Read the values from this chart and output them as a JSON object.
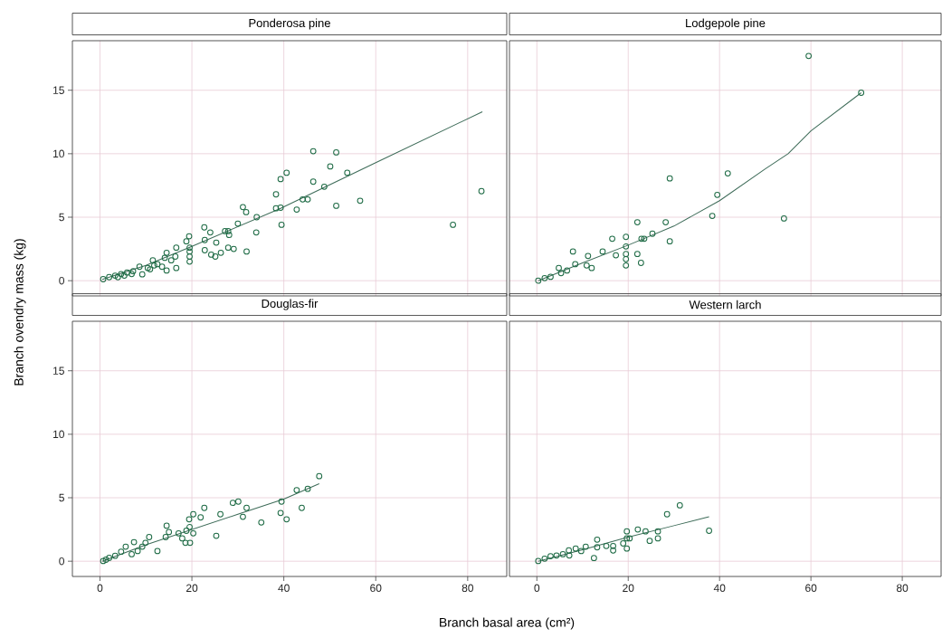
{
  "chart_data": [
    {
      "type": "scatter",
      "title": "Ponderosa pine",
      "ylabel": "Branch ovendry mass (kg)",
      "xlim": [
        -6,
        88.5
      ],
      "ylim": [
        -1.2,
        18.9
      ],
      "xticks": [
        0,
        20,
        40,
        60,
        80
      ],
      "yticks": [
        0,
        5,
        10,
        15
      ],
      "grid": true,
      "tick_labels": "y",
      "series": [
        {
          "marker": "circle",
          "color": "#1e6b45",
          "x": [
            83.0,
            76.8,
            46.4,
            51.4,
            50.1,
            53.8,
            40.6,
            39.3,
            46.4,
            48.8,
            38.3,
            56.6,
            51.4,
            44.1,
            45.2,
            42.8,
            39.3,
            38.3,
            39.5,
            34.1,
            34.0,
            31.1,
            31.8,
            30.0,
            31.9,
            27.9,
            28.1,
            27.2,
            27.9,
            29.1,
            22.7,
            24.0,
            25.3,
            22.8,
            22.8,
            24.2,
            26.3,
            25.1,
            19.4,
            18.8,
            19.5,
            19.5,
            19.5,
            19.5,
            16.6,
            14.5,
            14.1,
            16.4,
            16.6,
            14.5,
            11.5,
            11.8,
            10.4,
            8.6,
            7.2,
            5.9,
            4.6,
            3.3,
            2.0,
            0.7,
            9.2,
            12.5,
            13.5,
            15.5,
            10.9,
            3.9,
            5.3,
            6.9
          ],
          "values": [
            7.05,
            4.4,
            10.2,
            10.1,
            9.0,
            8.5,
            8.5,
            8.0,
            7.8,
            7.4,
            6.8,
            6.3,
            5.9,
            6.4,
            6.4,
            5.6,
            5.75,
            5.7,
            4.4,
            5.0,
            3.8,
            5.8,
            5.4,
            4.5,
            2.3,
            3.9,
            3.6,
            3.9,
            2.6,
            2.5,
            4.2,
            3.8,
            3.0,
            3.2,
            2.4,
            2.05,
            2.2,
            1.9,
            3.5,
            3.1,
            2.6,
            2.3,
            1.9,
            1.5,
            2.6,
            2.2,
            1.8,
            1.9,
            1.0,
            0.8,
            1.6,
            1.2,
            1.0,
            1.1,
            0.75,
            0.64,
            0.52,
            0.4,
            0.28,
            0.12,
            0.5,
            1.3,
            1.1,
            1.6,
            0.9,
            0.28,
            0.4,
            0.52
          ]
        },
        {
          "type": "line",
          "color": "#3d6b58",
          "x": [
            0.5,
            10,
            20,
            39.3,
            60,
            83.2
          ],
          "values": [
            0.1,
            1.2,
            2.7,
            5.7,
            9.3,
            13.3
          ]
        }
      ]
    },
    {
      "type": "scatter",
      "title": "Lodgepole pine",
      "xlim": [
        -6,
        88.5
      ],
      "ylim": [
        -1.2,
        18.9
      ],
      "xticks": [
        0,
        20,
        40,
        60,
        80
      ],
      "yticks": [
        0,
        5,
        10,
        15
      ],
      "grid": true,
      "tick_labels": false,
      "series": [
        {
          "marker": "circle",
          "color": "#1e6b45",
          "x": [
            59.5,
            71.0,
            54.1,
            41.8,
            29.1,
            39.5,
            38.4,
            28.2,
            22.0,
            29.1,
            25.3,
            23.5,
            22.9,
            19.5,
            19.5,
            19.5,
            19.5,
            19.5,
            22.0,
            22.8,
            16.5,
            14.4,
            17.3,
            11.2,
            10.9,
            12.0,
            7.9,
            8.4,
            6.6,
            4.8,
            5.3,
            3.0,
            1.7,
            0.3
          ],
          "values": [
            17.7,
            14.8,
            4.9,
            8.45,
            8.05,
            6.76,
            5.1,
            4.6,
            4.6,
            3.1,
            3.7,
            3.3,
            3.3,
            3.45,
            2.7,
            2.1,
            1.7,
            1.2,
            2.1,
            1.4,
            3.3,
            2.3,
            2.0,
            1.95,
            1.2,
            1.0,
            2.3,
            1.3,
            0.8,
            1.0,
            0.6,
            0.3,
            0.2,
            0.0
          ]
        },
        {
          "type": "line",
          "color": "#3d6b58",
          "x": [
            0.3,
            10,
            20,
            30,
            40,
            50,
            55,
            60,
            71
          ],
          "values": [
            0.0,
            1.4,
            2.8,
            4.3,
            6.3,
            8.8,
            10.0,
            11.8,
            14.8
          ]
        }
      ]
    },
    {
      "type": "scatter",
      "title": "Douglas-fir",
      "xlabel": "Branch basal area (cm²)",
      "xlim": [
        -6,
        88.5
      ],
      "ylim": [
        -1.2,
        18.9
      ],
      "xticks": [
        0,
        20,
        40,
        60,
        80
      ],
      "yticks": [
        0,
        5,
        10,
        15
      ],
      "grid": true,
      "series": [
        {
          "marker": "circle",
          "color": "#1e6b45",
          "x": [
            47.7,
            42.8,
            45.2,
            43.9,
            39.5,
            39.3,
            40.6,
            35.1,
            31.9,
            28.9,
            30.1,
            31.1,
            26.2,
            25.3,
            22.7,
            21.9,
            20.3,
            19.4,
            19.5,
            20.3,
            18.8,
            17.9,
            18.6,
            19.6,
            17.1,
            14.5,
            15.0,
            14.3,
            12.5,
            10.7,
            9.9,
            7.4,
            5.6,
            6.9,
            8.2,
            4.6,
            3.3,
            2.0,
            0.7,
            1.3,
            9.2
          ],
          "values": [
            6.7,
            5.6,
            5.7,
            4.2,
            4.7,
            3.8,
            3.3,
            3.05,
            4.2,
            4.6,
            4.7,
            3.5,
            3.7,
            2.0,
            4.2,
            3.45,
            3.7,
            3.3,
            2.7,
            2.2,
            2.4,
            1.8,
            1.45,
            1.45,
            2.2,
            2.8,
            2.3,
            1.9,
            0.8,
            1.9,
            1.45,
            1.5,
            1.15,
            0.55,
            0.8,
            0.75,
            0.43,
            0.26,
            0.02,
            0.12,
            1.15
          ]
        },
        {
          "type": "line",
          "color": "#3d6b58",
          "x": [
            0.5,
            10,
            20,
            30,
            40,
            47.7
          ],
          "values": [
            0.0,
            1.3,
            2.5,
            3.7,
            4.9,
            6.1
          ]
        }
      ]
    },
    {
      "type": "scatter",
      "title": "Western larch",
      "xlim": [
        -6,
        88.5
      ],
      "ylim": [
        -1.2,
        18.9
      ],
      "xticks": [
        0,
        20,
        40,
        60,
        80
      ],
      "yticks": [
        0,
        5,
        10,
        15
      ],
      "grid": true,
      "tick_labels": "x",
      "series": [
        {
          "marker": "circle",
          "color": "#1e6b45",
          "x": [
            31.3,
            28.5,
            37.7,
            26.5,
            24.7,
            26.5,
            23.8,
            22.1,
            19.7,
            19.7,
            20.3,
            19.7,
            18.9,
            16.7,
            16.7,
            15.2,
            13.2,
            13.2,
            12.5,
            10.7,
            9.7,
            8.5,
            7.0,
            7.1,
            5.7,
            4.3,
            3.0,
            1.7,
            0.3
          ],
          "values": [
            4.4,
            3.7,
            2.4,
            2.35,
            1.6,
            1.8,
            2.35,
            2.5,
            2.35,
            1.8,
            1.8,
            1.0,
            1.4,
            1.2,
            0.85,
            1.2,
            1.7,
            1.1,
            0.25,
            1.15,
            0.8,
            1.0,
            0.85,
            0.45,
            0.55,
            0.45,
            0.4,
            0.2,
            0.02
          ]
        },
        {
          "type": "line",
          "color": "#3d6b58",
          "x": [
            0.3,
            10,
            20,
            30,
            37.7
          ],
          "values": [
            0.0,
            0.9,
            1.9,
            2.8,
            3.5
          ]
        }
      ]
    }
  ]
}
